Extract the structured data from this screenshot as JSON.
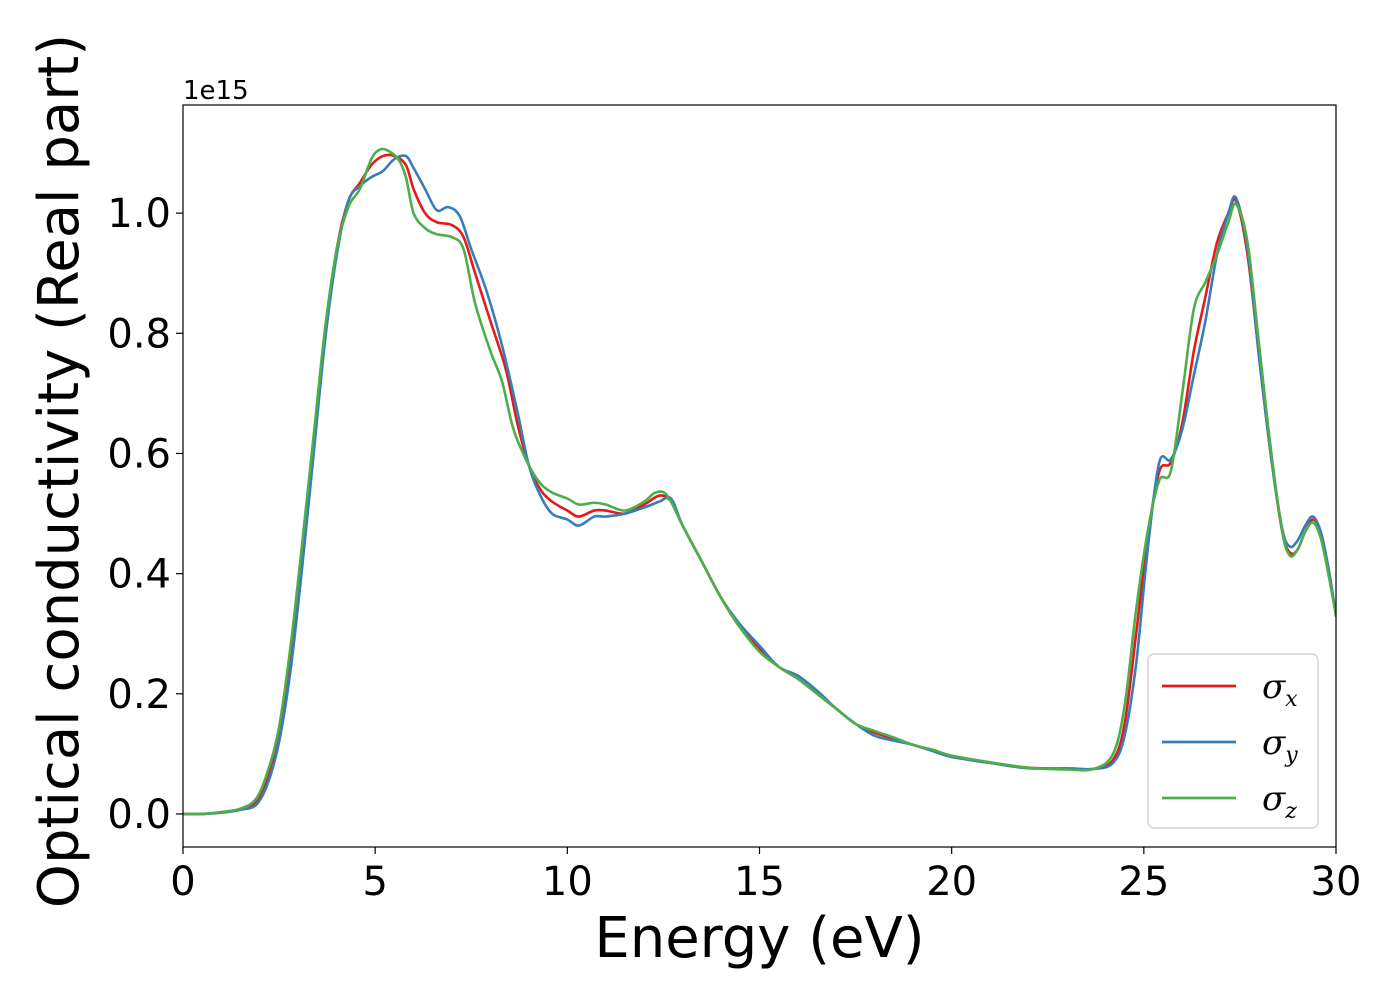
{
  "chart_data": {
    "type": "line",
    "title": "",
    "xlabel": "Energy (eV)",
    "ylabel": "Optical conductivity (Real part)",
    "y_offset_label": "1e15",
    "xlim": [
      0,
      30
    ],
    "ylim": [
      -0.055,
      1.18
    ],
    "x_ticks": [
      0,
      5,
      10,
      15,
      20,
      25,
      30
    ],
    "x_tick_labels": [
      "0",
      "5",
      "10",
      "15",
      "20",
      "25",
      "30"
    ],
    "y_ticks": [
      0.0,
      0.2,
      0.4,
      0.6,
      0.8,
      1.0
    ],
    "y_tick_labels": [
      "0.0",
      "0.2",
      "0.4",
      "0.6",
      "0.8",
      "1.0"
    ],
    "grid": false,
    "legend": {
      "position": "bottom-right",
      "entries": [
        {
          "symbol": "σ",
          "sub": "x",
          "color": "#e41a1c"
        },
        {
          "symbol": "σ",
          "sub": "y",
          "color": "#377eb8"
        },
        {
          "symbol": "σ",
          "sub": "z",
          "color": "#4daf4a"
        }
      ]
    },
    "series": [
      {
        "color": "#e41a1c",
        "points": [
          [
            0,
            0.0
          ],
          [
            0.5,
            0.0
          ],
          [
            1.0,
            0.003
          ],
          [
            1.5,
            0.008
          ],
          [
            1.9,
            0.02
          ],
          [
            2.2,
            0.06
          ],
          [
            2.5,
            0.13
          ],
          [
            2.8,
            0.26
          ],
          [
            3.1,
            0.43
          ],
          [
            3.4,
            0.62
          ],
          [
            3.7,
            0.8
          ],
          [
            4.0,
            0.94
          ],
          [
            4.3,
            1.02
          ],
          [
            4.6,
            1.05
          ],
          [
            4.9,
            1.08
          ],
          [
            5.2,
            1.095
          ],
          [
            5.5,
            1.095
          ],
          [
            5.8,
            1.08
          ],
          [
            6.0,
            1.04
          ],
          [
            6.3,
            1.0
          ],
          [
            6.6,
            0.985
          ],
          [
            7.0,
            0.98
          ],
          [
            7.3,
            0.96
          ],
          [
            7.6,
            0.9
          ],
          [
            8.0,
            0.82
          ],
          [
            8.4,
            0.74
          ],
          [
            8.7,
            0.65
          ],
          [
            9.0,
            0.58
          ],
          [
            9.3,
            0.54
          ],
          [
            9.6,
            0.52
          ],
          [
            10.0,
            0.505
          ],
          [
            10.3,
            0.495
          ],
          [
            10.7,
            0.505
          ],
          [
            11.0,
            0.505
          ],
          [
            11.5,
            0.5
          ],
          [
            12.0,
            0.515
          ],
          [
            12.4,
            0.53
          ],
          [
            12.7,
            0.52
          ],
          [
            13.0,
            0.48
          ],
          [
            13.5,
            0.42
          ],
          [
            14.0,
            0.36
          ],
          [
            14.5,
            0.31
          ],
          [
            15.0,
            0.275
          ],
          [
            15.5,
            0.245
          ],
          [
            16.0,
            0.225
          ],
          [
            16.5,
            0.2
          ],
          [
            17.0,
            0.175
          ],
          [
            17.5,
            0.15
          ],
          [
            18.0,
            0.135
          ],
          [
            18.5,
            0.125
          ],
          [
            19.0,
            0.115
          ],
          [
            19.5,
            0.105
          ],
          [
            20.0,
            0.095
          ],
          [
            21.0,
            0.085
          ],
          [
            22.0,
            0.077
          ],
          [
            23.0,
            0.075
          ],
          [
            23.7,
            0.075
          ],
          [
            24.2,
            0.09
          ],
          [
            24.5,
            0.15
          ],
          [
            24.8,
            0.3
          ],
          [
            25.1,
            0.46
          ],
          [
            25.4,
            0.57
          ],
          [
            25.7,
            0.585
          ],
          [
            26.0,
            0.65
          ],
          [
            26.3,
            0.77
          ],
          [
            26.6,
            0.86
          ],
          [
            26.9,
            0.95
          ],
          [
            27.2,
            1.0
          ],
          [
            27.4,
            1.02
          ],
          [
            27.7,
            0.93
          ],
          [
            28.0,
            0.76
          ],
          [
            28.3,
            0.6
          ],
          [
            28.6,
            0.47
          ],
          [
            28.8,
            0.435
          ],
          [
            29.0,
            0.44
          ],
          [
            29.2,
            0.47
          ],
          [
            29.4,
            0.49
          ],
          [
            29.6,
            0.47
          ],
          [
            29.8,
            0.41
          ],
          [
            30.0,
            0.33
          ]
        ]
      },
      {
        "color": "#377eb8",
        "points": [
          [
            0,
            0.0
          ],
          [
            0.5,
            0.0
          ],
          [
            1.0,
            0.002
          ],
          [
            1.5,
            0.007
          ],
          [
            1.9,
            0.015
          ],
          [
            2.2,
            0.05
          ],
          [
            2.5,
            0.12
          ],
          [
            2.8,
            0.24
          ],
          [
            3.1,
            0.41
          ],
          [
            3.4,
            0.6
          ],
          [
            3.7,
            0.79
          ],
          [
            4.0,
            0.93
          ],
          [
            4.3,
            1.02
          ],
          [
            4.6,
            1.045
          ],
          [
            4.9,
            1.06
          ],
          [
            5.2,
            1.07
          ],
          [
            5.5,
            1.09
          ],
          [
            5.8,
            1.095
          ],
          [
            6.0,
            1.075
          ],
          [
            6.3,
            1.04
          ],
          [
            6.6,
            1.005
          ],
          [
            6.9,
            1.01
          ],
          [
            7.2,
            0.995
          ],
          [
            7.5,
            0.94
          ],
          [
            7.9,
            0.87
          ],
          [
            8.3,
            0.78
          ],
          [
            8.7,
            0.67
          ],
          [
            9.0,
            0.58
          ],
          [
            9.3,
            0.53
          ],
          [
            9.6,
            0.5
          ],
          [
            10.0,
            0.49
          ],
          [
            10.3,
            0.48
          ],
          [
            10.7,
            0.495
          ],
          [
            11.0,
            0.495
          ],
          [
            11.5,
            0.5
          ],
          [
            12.0,
            0.51
          ],
          [
            12.4,
            0.52
          ],
          [
            12.7,
            0.525
          ],
          [
            13.0,
            0.48
          ],
          [
            13.5,
            0.42
          ],
          [
            14.0,
            0.36
          ],
          [
            14.5,
            0.315
          ],
          [
            15.0,
            0.28
          ],
          [
            15.5,
            0.245
          ],
          [
            16.0,
            0.23
          ],
          [
            16.5,
            0.205
          ],
          [
            17.0,
            0.175
          ],
          [
            17.5,
            0.15
          ],
          [
            18.0,
            0.13
          ],
          [
            18.5,
            0.122
          ],
          [
            19.0,
            0.115
          ],
          [
            19.5,
            0.105
          ],
          [
            20.0,
            0.095
          ],
          [
            21.0,
            0.085
          ],
          [
            22.0,
            0.076
          ],
          [
            23.0,
            0.076
          ],
          [
            23.7,
            0.075
          ],
          [
            24.2,
            0.085
          ],
          [
            24.5,
            0.13
          ],
          [
            24.8,
            0.25
          ],
          [
            25.1,
            0.44
          ],
          [
            25.4,
            0.585
          ],
          [
            25.7,
            0.59
          ],
          [
            26.0,
            0.64
          ],
          [
            26.3,
            0.73
          ],
          [
            26.6,
            0.82
          ],
          [
            26.9,
            0.93
          ],
          [
            27.2,
            1.0
          ],
          [
            27.4,
            1.025
          ],
          [
            27.7,
            0.94
          ],
          [
            28.0,
            0.76
          ],
          [
            28.3,
            0.6
          ],
          [
            28.6,
            0.475
          ],
          [
            28.8,
            0.445
          ],
          [
            29.0,
            0.455
          ],
          [
            29.2,
            0.48
          ],
          [
            29.4,
            0.495
          ],
          [
            29.6,
            0.47
          ],
          [
            29.8,
            0.41
          ],
          [
            30.0,
            0.33
          ]
        ]
      },
      {
        "color": "#4daf4a",
        "points": [
          [
            0,
            0.0
          ],
          [
            0.5,
            0.0
          ],
          [
            1.0,
            0.003
          ],
          [
            1.5,
            0.009
          ],
          [
            1.9,
            0.025
          ],
          [
            2.2,
            0.07
          ],
          [
            2.5,
            0.145
          ],
          [
            2.8,
            0.28
          ],
          [
            3.1,
            0.45
          ],
          [
            3.4,
            0.63
          ],
          [
            3.7,
            0.81
          ],
          [
            4.0,
            0.94
          ],
          [
            4.3,
            1.01
          ],
          [
            4.6,
            1.04
          ],
          [
            4.9,
            1.09
          ],
          [
            5.1,
            1.105
          ],
          [
            5.3,
            1.105
          ],
          [
            5.6,
            1.09
          ],
          [
            5.8,
            1.06
          ],
          [
            6.0,
            1.0
          ],
          [
            6.3,
            0.975
          ],
          [
            6.6,
            0.965
          ],
          [
            7.0,
            0.96
          ],
          [
            7.3,
            0.94
          ],
          [
            7.6,
            0.85
          ],
          [
            8.0,
            0.77
          ],
          [
            8.3,
            0.72
          ],
          [
            8.6,
            0.64
          ],
          [
            9.0,
            0.58
          ],
          [
            9.3,
            0.55
          ],
          [
            9.6,
            0.535
          ],
          [
            10.0,
            0.525
          ],
          [
            10.3,
            0.515
          ],
          [
            10.7,
            0.518
          ],
          [
            11.0,
            0.515
          ],
          [
            11.5,
            0.505
          ],
          [
            12.0,
            0.52
          ],
          [
            12.3,
            0.535
          ],
          [
            12.6,
            0.53
          ],
          [
            13.0,
            0.48
          ],
          [
            13.5,
            0.42
          ],
          [
            14.0,
            0.36
          ],
          [
            14.5,
            0.31
          ],
          [
            15.0,
            0.27
          ],
          [
            15.5,
            0.245
          ],
          [
            16.0,
            0.225
          ],
          [
            16.5,
            0.2
          ],
          [
            17.0,
            0.175
          ],
          [
            17.5,
            0.15
          ],
          [
            18.0,
            0.138
          ],
          [
            18.5,
            0.127
          ],
          [
            19.0,
            0.115
          ],
          [
            19.5,
            0.107
          ],
          [
            20.0,
            0.097
          ],
          [
            21.0,
            0.086
          ],
          [
            22.0,
            0.077
          ],
          [
            23.0,
            0.074
          ],
          [
            23.7,
            0.075
          ],
          [
            24.2,
            0.1
          ],
          [
            24.5,
            0.18
          ],
          [
            24.8,
            0.34
          ],
          [
            25.1,
            0.47
          ],
          [
            25.4,
            0.555
          ],
          [
            25.7,
            0.57
          ],
          [
            26.0,
            0.7
          ],
          [
            26.3,
            0.84
          ],
          [
            26.6,
            0.885
          ],
          [
            26.9,
            0.93
          ],
          [
            27.2,
            0.985
          ],
          [
            27.4,
            1.015
          ],
          [
            27.7,
            0.95
          ],
          [
            28.0,
            0.78
          ],
          [
            28.3,
            0.61
          ],
          [
            28.6,
            0.47
          ],
          [
            28.8,
            0.43
          ],
          [
            29.0,
            0.44
          ],
          [
            29.2,
            0.47
          ],
          [
            29.4,
            0.485
          ],
          [
            29.6,
            0.46
          ],
          [
            29.8,
            0.4
          ],
          [
            30.0,
            0.33
          ]
        ]
      }
    ]
  }
}
